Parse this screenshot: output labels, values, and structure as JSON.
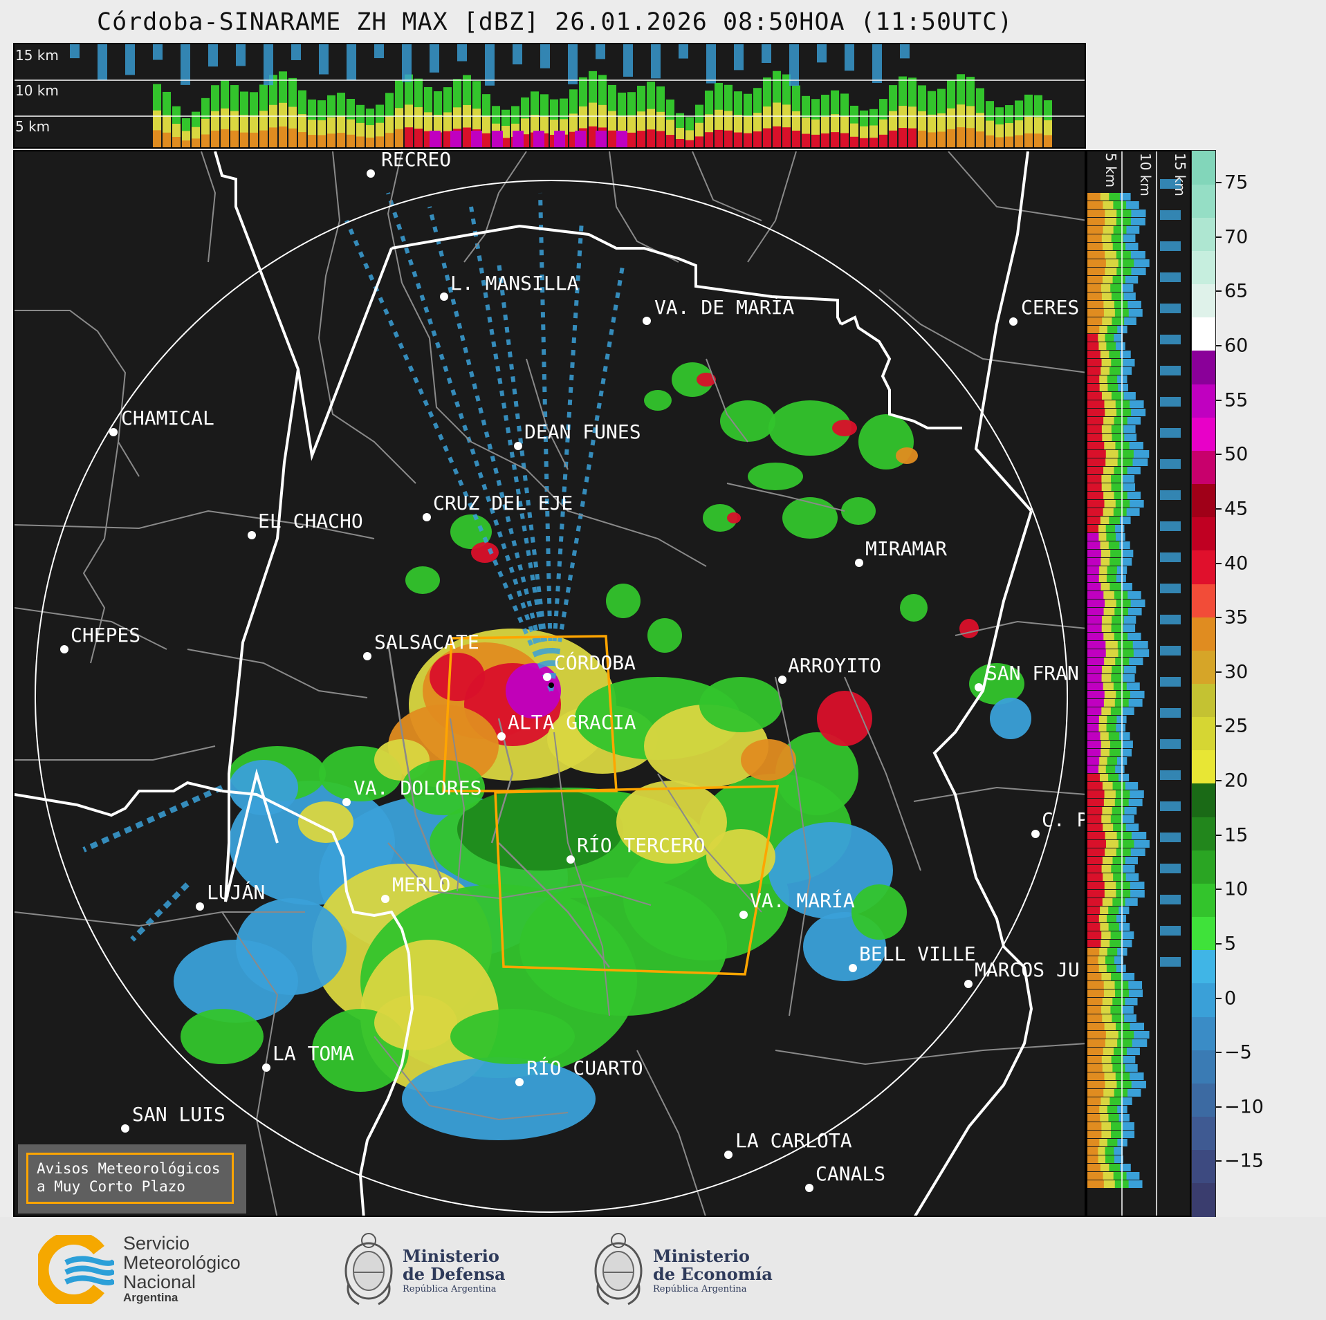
{
  "title": "Córdoba-SINARAME ZH MAX [dBZ] 26.01.2026 08:50HOA (11:50UTC)",
  "height_labels": {
    "top_panel": [
      "15 km",
      "10 km",
      "5 km"
    ],
    "side_panel": [
      "5 km",
      "10 km",
      "15 km"
    ]
  },
  "colorbar": {
    "ticks": [
      "75",
      "70",
      "65",
      "60",
      "55",
      "50",
      "45",
      "40",
      "35",
      "30",
      "25",
      "20",
      "15",
      "10",
      "5",
      "0",
      "−5",
      "−10",
      "−15"
    ],
    "colors": [
      "#3a3d6e",
      "#3d4a80",
      "#3f5a92",
      "#3c6aa2",
      "#3a7bb4",
      "#3a8cc6",
      "#3aa0d8",
      "#40b5e6",
      "#3fe23a",
      "#33c42c",
      "#2aa523",
      "#22861c",
      "#1a6a16",
      "#e8e634",
      "#d6d633",
      "#c4c232",
      "#d6a528",
      "#e08c20",
      "#f24c38",
      "#e0102c",
      "#c00022",
      "#a00018",
      "#c8006c",
      "#e800c8",
      "#c000c0",
      "#8a0099",
      "#ffffff",
      "#dff2ea",
      "#c6eede",
      "#aee6d1",
      "#95dec5",
      "#82d6ba"
    ]
  },
  "cities": [
    {
      "name": "RECREO"
    },
    {
      "name": "L. MANSILLA"
    },
    {
      "name": "VA. DE MARÍA"
    },
    {
      "name": "CERES"
    },
    {
      "name": "CHAMICAL"
    },
    {
      "name": "DEAN FUNES"
    },
    {
      "name": "CRUZ DEL EJE"
    },
    {
      "name": "EL CHACHO"
    },
    {
      "name": "MIRAMAR"
    },
    {
      "name": "CHEPES"
    },
    {
      "name": "SALSACATE"
    },
    {
      "name": "CÓRDOBA"
    },
    {
      "name": "ARROYITO"
    },
    {
      "name": "SAN FRAN"
    },
    {
      "name": "ALTA GRACIA"
    },
    {
      "name": "VA. DOLORES"
    },
    {
      "name": "RÍO TERCERO"
    },
    {
      "name": "C. P"
    },
    {
      "name": "LUJÁN"
    },
    {
      "name": "MERLO"
    },
    {
      "name": "VA. MARÍA"
    },
    {
      "name": "BELL VILLE"
    },
    {
      "name": "MARCOS JU"
    },
    {
      "name": "LA TOMA"
    },
    {
      "name": "RÍO CUARTO"
    },
    {
      "name": "SAN LUIS"
    },
    {
      "name": "LA CARLOTA"
    },
    {
      "name": "CANALS"
    }
  ],
  "warning": {
    "line1": "Avisos Meteorológicos",
    "line2": "a Muy Corto Plazo"
  },
  "footer": {
    "smn": {
      "line1": "Servicio",
      "line2": "Meteorológico",
      "line3": "Nacional",
      "line4": "Argentina"
    },
    "defensa": {
      "line1": "Ministerio",
      "line2": "de Defensa",
      "line3": "República Argentina"
    },
    "economia": {
      "line1": "Ministerio",
      "line2": "de Economía",
      "line3": "República Argentina"
    }
  },
  "palette": {
    "background": "#1a1a1a",
    "range_ring": "#ffffff",
    "warning_border": "#ffa500",
    "smn_orange": "#f5a800",
    "smn_blue": "#2b9fd8"
  }
}
